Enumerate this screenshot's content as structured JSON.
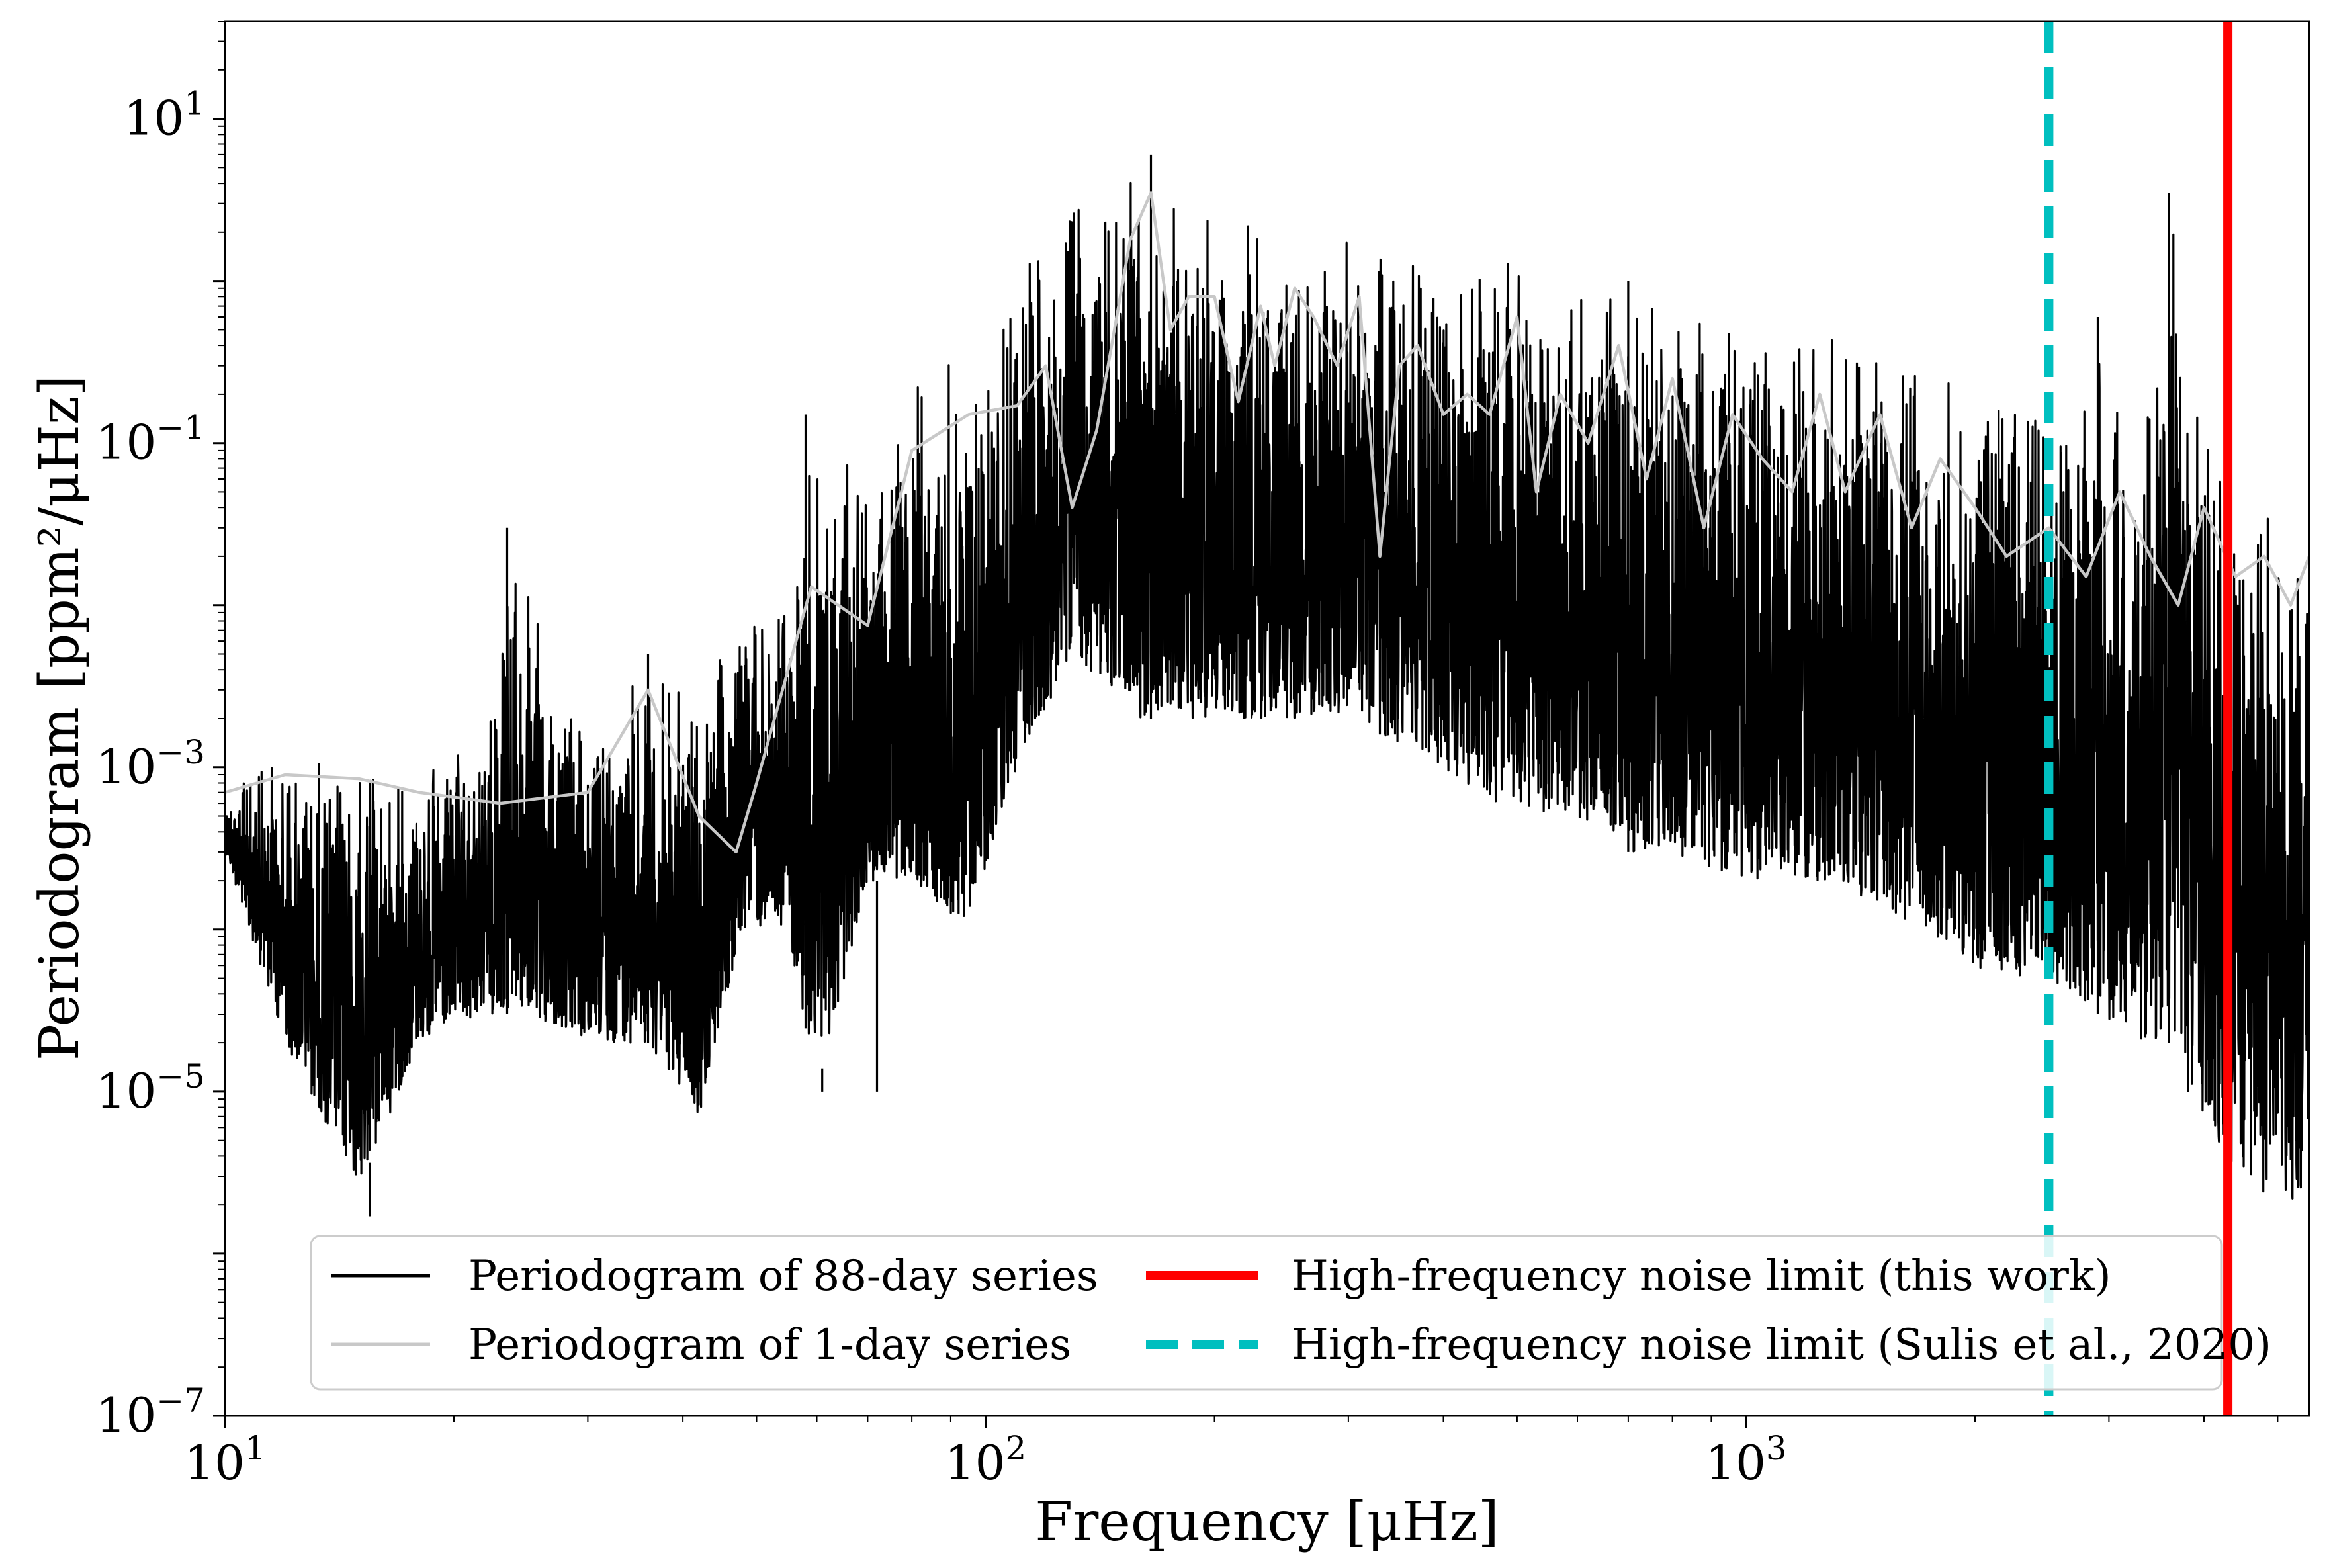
{
  "chart_data": {
    "type": "line",
    "x_scale": "log",
    "y_scale": "log",
    "xlabel": "Frequency [μHz]",
    "ylabel": "Periodogram [ppm²/μHz]",
    "xlim": [
      10,
      5500
    ],
    "ylim": [
      1e-07,
      40
    ],
    "x_ticks": [
      {
        "value": 10,
        "base": "10",
        "exp": "1"
      },
      {
        "value": 100,
        "base": "10",
        "exp": "2"
      },
      {
        "value": 1000,
        "base": "10",
        "exp": "3"
      }
    ],
    "y_ticks": [
      {
        "value": 10,
        "base": "10",
        "exp": "1"
      },
      {
        "value": 0.1,
        "base": "10",
        "exp": "−1"
      },
      {
        "value": 0.001,
        "base": "10",
        "exp": "−3"
      },
      {
        "value": 1e-05,
        "base": "10",
        "exp": "−5"
      },
      {
        "value": 1e-07,
        "base": "10",
        "exp": "−7"
      }
    ],
    "grid": false,
    "legend_position": "lower-center",
    "series": [
      {
        "name": "Periodogram of 88-day series",
        "color": "#000000",
        "style": "solid",
        "envelope": [
          [
            10,
            0.0007,
            0.0003
          ],
          [
            12,
            0.0015,
            2e-05
          ],
          [
            15,
            0.0012,
            2.5e-06
          ],
          [
            18,
            0.001,
            2e-05
          ],
          [
            22,
            0.0015,
            3e-05
          ],
          [
            23.5,
            0.03,
            3e-05
          ],
          [
            30,
            0.0015,
            2e-05
          ],
          [
            36,
            0.005,
            2e-05
          ],
          [
            42,
            0.003,
            7e-06
          ],
          [
            48,
            0.01,
            0.0001
          ],
          [
            55,
            0.015,
            0.0001
          ],
          [
            60,
            0.15,
            1e-05
          ],
          [
            70,
            0.05,
            0.0002
          ],
          [
            80,
            0.3,
            0.0002
          ],
          [
            95,
            0.5,
            0.0001
          ],
          [
            110,
            1.5,
            0.001
          ],
          [
            130,
            3.5,
            0.005
          ],
          [
            160,
            5.5,
            0.002
          ],
          [
            200,
            3.0,
            0.002
          ],
          [
            250,
            2.5,
            0.002
          ],
          [
            300,
            2.0,
            0.002
          ],
          [
            400,
            1.5,
            0.001
          ],
          [
            500,
            1.5,
            0.0005
          ],
          [
            600,
            1.2,
            0.0005
          ],
          [
            700,
            1.0,
            0.0003
          ],
          [
            800,
            0.9,
            0.0003
          ],
          [
            1000,
            0.7,
            0.0002
          ],
          [
            1300,
            0.5,
            0.0002
          ],
          [
            1700,
            0.4,
            0.0001
          ],
          [
            2100,
            0.3,
            5e-05
          ],
          [
            2500,
            0.25,
            5e-05
          ],
          [
            2900,
            0.6,
            3e-05
          ],
          [
            3300,
            0.3,
            2e-05
          ],
          [
            3600,
            3.0,
            2e-05
          ],
          [
            4000,
            0.2,
            5e-06
          ],
          [
            4500,
            0.08,
            3e-06
          ],
          [
            5000,
            0.08,
            2e-06
          ],
          [
            5500,
            0.07,
            2e-06
          ]
        ],
        "spikes": [
          [
            23.5,
            0.03
          ],
          [
            36,
            0.005
          ],
          [
            58,
            0.15
          ],
          [
            61,
            1e-05
          ],
          [
            72,
            1e-05
          ],
          [
            15.5,
            1.7e-06
          ],
          [
            165,
            6.0
          ],
          [
            3600,
            3.5
          ],
          [
            2900,
            0.6
          ],
          [
            700,
            1.0
          ]
        ]
      },
      {
        "name": "Periodogram of 1-day series",
        "color": "#c8c8c8",
        "style": "solid",
        "x": [
          10,
          12,
          15,
          18,
          23,
          30,
          36,
          42,
          47,
          50,
          59,
          70,
          80,
          95,
          110,
          120,
          130,
          140,
          155,
          165,
          175,
          185,
          200,
          215,
          230,
          240,
          255,
          270,
          290,
          310,
          330,
          350,
          370,
          400,
          430,
          460,
          500,
          530,
          570,
          620,
          680,
          740,
          800,
          880,
          960,
          1050,
          1150,
          1250,
          1350,
          1500,
          1650,
          1800,
          2000,
          2200,
          2500,
          2800,
          3100,
          3400,
          3700,
          4000,
          4400,
          4800,
          5200,
          5500
        ],
        "y": [
          0.0007,
          0.0009,
          0.00085,
          0.0007,
          0.0006,
          0.0007,
          0.003,
          0.0005,
          0.0003,
          0.0008,
          0.013,
          0.0075,
          0.09,
          0.15,
          0.17,
          0.3,
          0.04,
          0.12,
          1.8,
          3.5,
          0.5,
          0.8,
          0.8,
          0.18,
          0.7,
          0.3,
          0.9,
          0.6,
          0.3,
          0.8,
          0.02,
          0.3,
          0.4,
          0.15,
          0.2,
          0.15,
          0.6,
          0.05,
          0.2,
          0.1,
          0.4,
          0.06,
          0.25,
          0.03,
          0.15,
          0.08,
          0.05,
          0.2,
          0.05,
          0.15,
          0.03,
          0.08,
          0.04,
          0.02,
          0.03,
          0.015,
          0.05,
          0.02,
          0.01,
          0.04,
          0.015,
          0.02,
          0.01,
          0.02
        ]
      }
    ],
    "vertical_lines": [
      {
        "name": "High-frequency noise limit (this work)",
        "x": 4300,
        "color": "#ff0000",
        "style": "solid"
      },
      {
        "name": "High-frequency noise limit (Sulis et al., 2020)",
        "x": 2500,
        "color": "#00bfbf",
        "style": "dashed"
      }
    ]
  }
}
